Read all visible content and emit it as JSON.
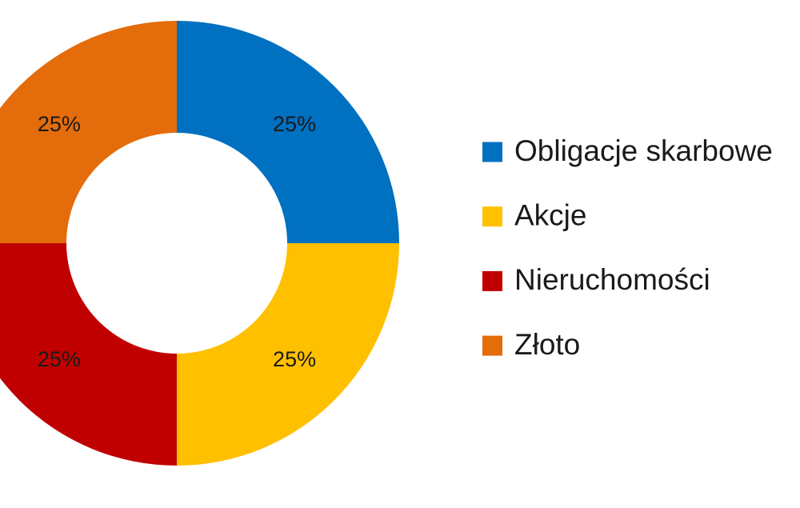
{
  "chart_data": {
    "type": "donut",
    "categories": [
      "Obligacje skarbowe",
      "Akcje",
      "Nieruchomości",
      "Złoto"
    ],
    "values": [
      25,
      25,
      25,
      25
    ],
    "value_labels": [
      "25%",
      "25%",
      "25%",
      "25%"
    ],
    "colors": [
      "#0070c0",
      "#ffc000",
      "#c00000",
      "#e46c0a"
    ],
    "legend": "right"
  }
}
